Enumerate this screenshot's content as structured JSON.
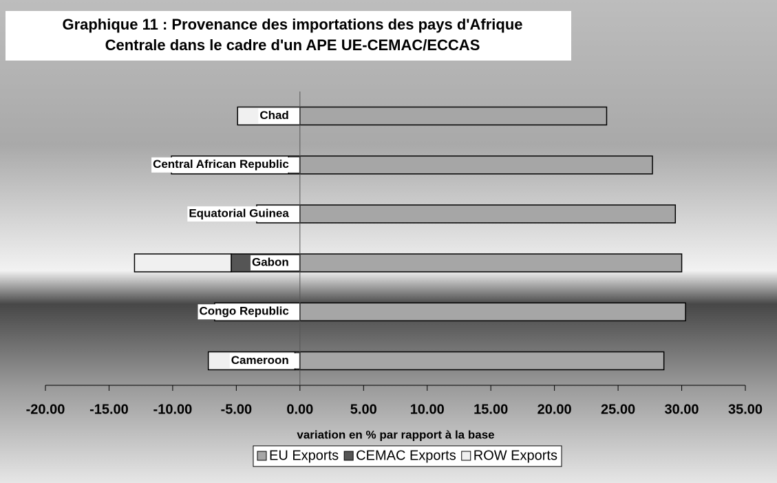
{
  "chart_data": {
    "type": "bar",
    "orientation": "horizontal",
    "stacked": true,
    "title": "Graphique 11 : Provenance des importations des pays d'Afrique Centrale dans le cadre d'un APE UE-CEMAC/ECCAS",
    "title_lines": [
      "Graphique 11 : Provenance des importations des pays d'Afrique",
      "Centrale dans le cadre d'un APE UE-CEMAC/ECCAS"
    ],
    "xlabel": "variation en % par rapport à la base",
    "categories": [
      "Chad",
      "Central African Republic",
      "Equatorial Guinea",
      "Gabon",
      "Congo Republic",
      "Cameroon"
    ],
    "series": [
      {
        "name": "EU Exports",
        "color": "#a6a6a6",
        "values": [
          24.1,
          27.7,
          29.5,
          30.0,
          30.3,
          28.6
        ]
      },
      {
        "name": "CEMAC Exports",
        "color": "#555555",
        "values": [
          0,
          -0.9,
          0,
          -5.4,
          0,
          -0.4
        ]
      },
      {
        "name": "ROW Exports",
        "color": "#f0f0f0",
        "values": [
          -4.9,
          -9.2,
          -3.4,
          -7.6,
          -6.7,
          -6.8
        ]
      }
    ],
    "xlim": [
      -20,
      35
    ],
    "xticks": [
      {
        "value": -20,
        "label": "-20.00"
      },
      {
        "value": -15,
        "label": "-15.00"
      },
      {
        "value": -10,
        "label": "-10.00"
      },
      {
        "value": -5,
        "label": "-5.00"
      },
      {
        "value": 0,
        "label": "0.00"
      },
      {
        "value": 5,
        "label": "5.00"
      },
      {
        "value": 10,
        "label": "10.00"
      },
      {
        "value": 15,
        "label": "15.00"
      },
      {
        "value": 20,
        "label": "20.00"
      },
      {
        "value": 25,
        "label": "25.00"
      },
      {
        "value": 30,
        "label": "30.00"
      },
      {
        "value": 35,
        "label": "35.00"
      }
    ],
    "legend": "bottom"
  }
}
